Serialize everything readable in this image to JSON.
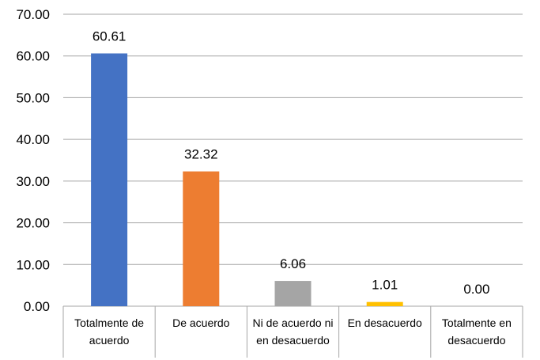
{
  "chart_data": {
    "type": "bar",
    "categories": [
      [
        "Totalmente de",
        "acuerdo"
      ],
      [
        "De acuerdo"
      ],
      [
        "Ni de acuerdo ni",
        "en desacuerdo"
      ],
      [
        "En desacuerdo"
      ],
      [
        "Totalmente en",
        "desacuerdo"
      ]
    ],
    "values": [
      60.61,
      32.32,
      6.06,
      1.01,
      0.0
    ],
    "data_labels": [
      "60.61",
      "32.32",
      "6.06",
      "1.01",
      "0.00"
    ],
    "colors": [
      "#4472c4",
      "#ed7d31",
      "#a5a5a5",
      "#ffc000",
      "#5b9bd5"
    ],
    "ylim": [
      0,
      70
    ],
    "yticks": [
      "0.00",
      "10.00",
      "20.00",
      "30.00",
      "40.00",
      "50.00",
      "60.00",
      "70.00"
    ],
    "grid": true,
    "title": "",
    "xlabel": "",
    "ylabel": ""
  }
}
